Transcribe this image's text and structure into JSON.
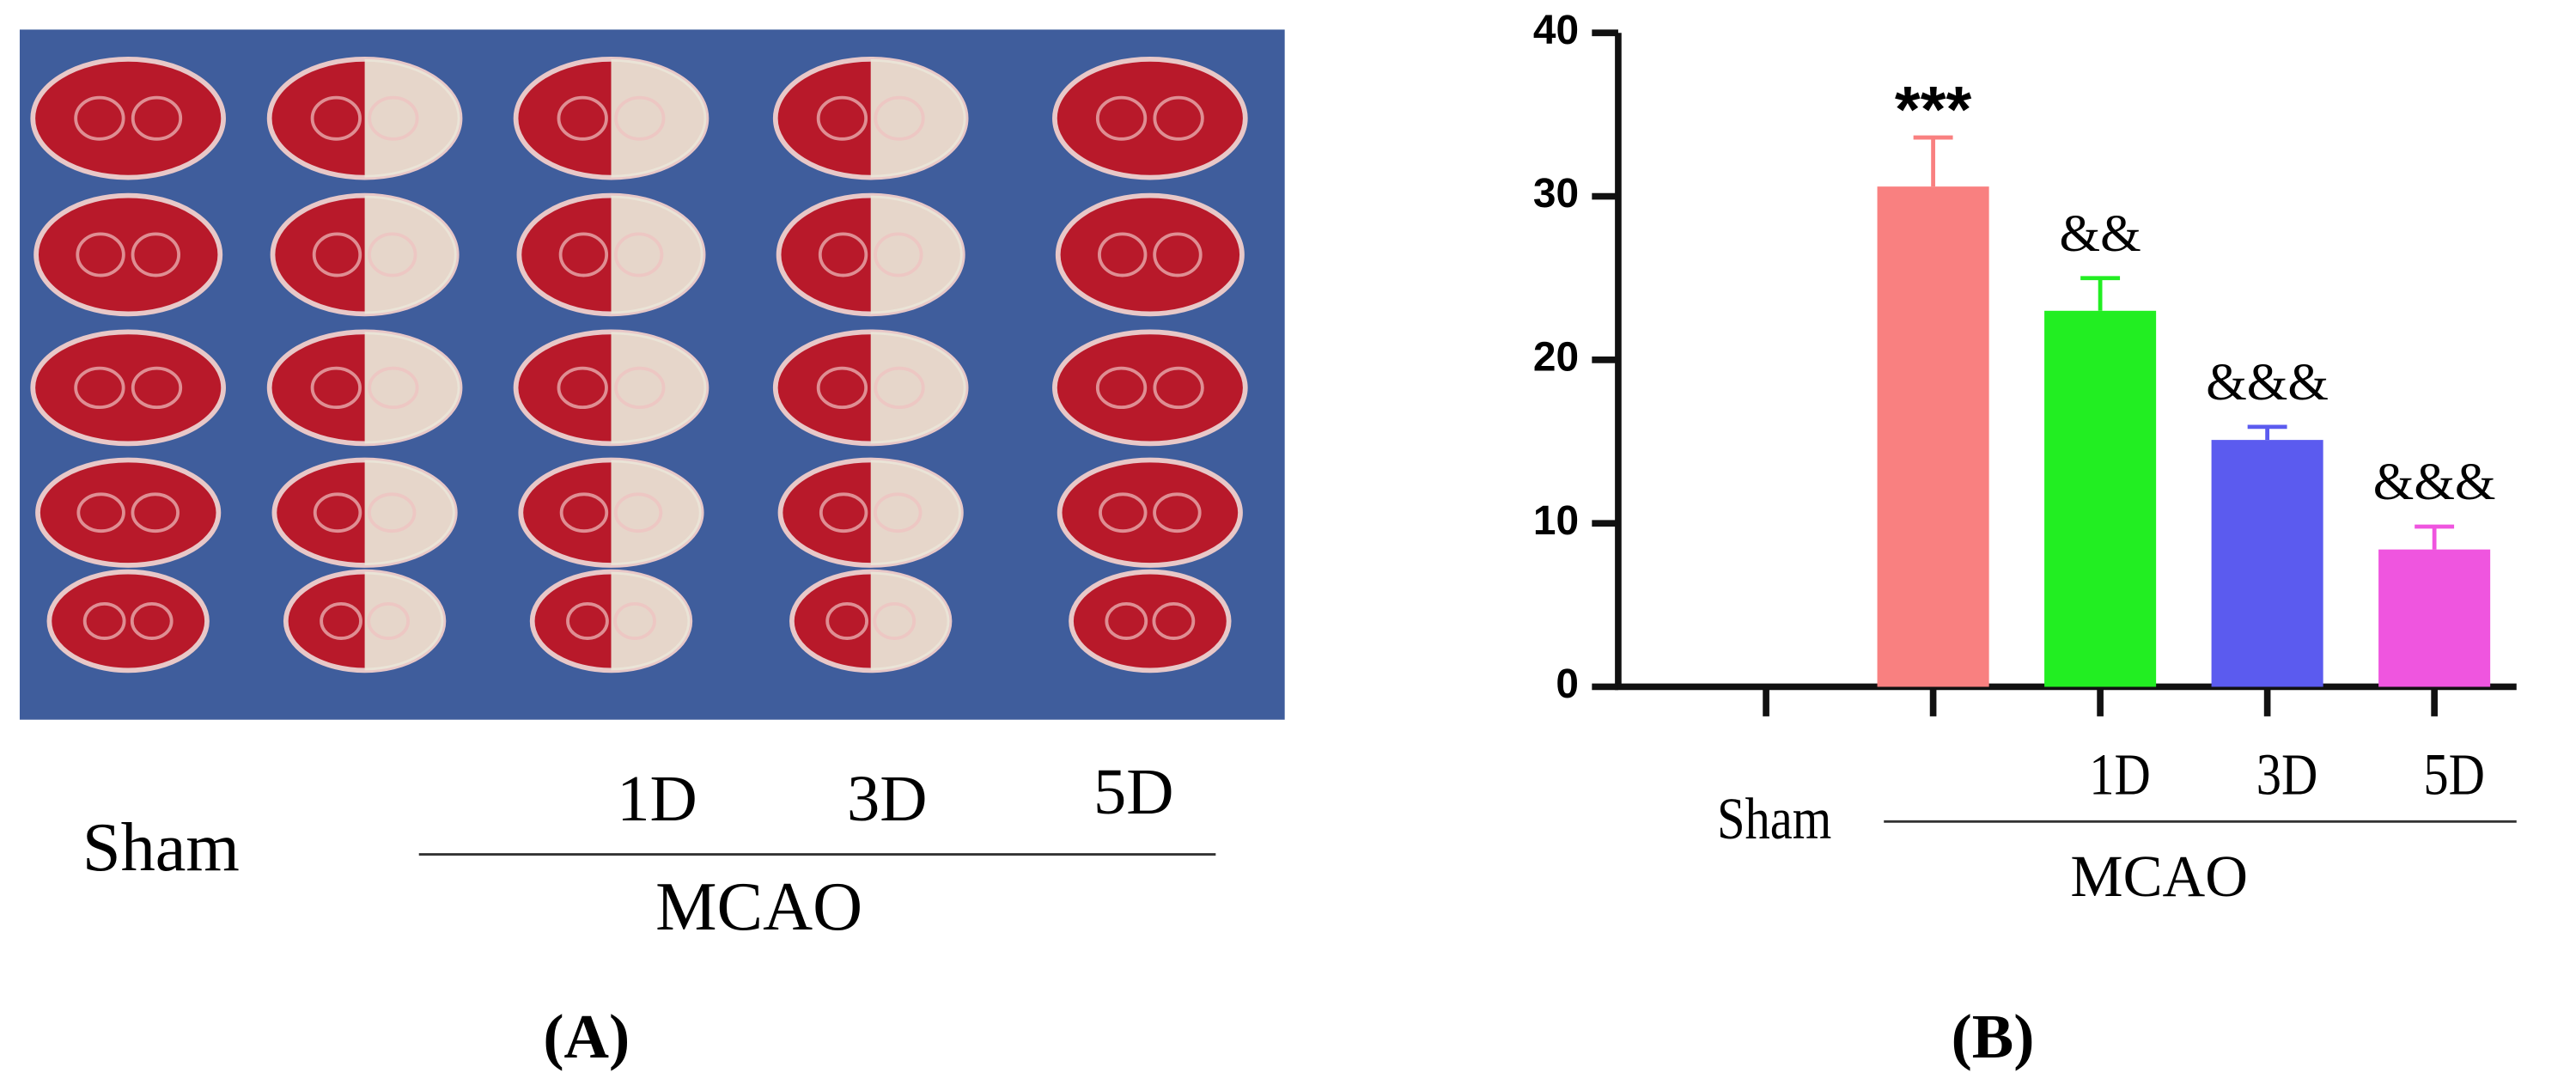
{
  "panel_a": {
    "label": "(A)",
    "sham_label": "Sham",
    "day_labels": [
      "1D",
      "3D",
      "5D"
    ],
    "group_label": "MCAO"
  },
  "panel_b_label": "(B)",
  "chart_data": {
    "type": "bar",
    "categories": [
      "Sham",
      null,
      "1D",
      "3D",
      "5D"
    ],
    "values": [
      0,
      30.6,
      23,
      15.1,
      8.4
    ],
    "errors": [
      0,
      3,
      2,
      0.8,
      1.4
    ],
    "colors": [
      "#f08080",
      "#f98080",
      "#22ee22",
      "#5b5bef",
      "#ef55df"
    ],
    "annotations": [
      null,
      "***",
      "&&",
      "&&&",
      "&&&"
    ],
    "group_label": "MCAO",
    "ylim": [
      0,
      40
    ],
    "yticks": [
      0,
      10,
      20,
      30,
      40
    ],
    "grid": false
  }
}
